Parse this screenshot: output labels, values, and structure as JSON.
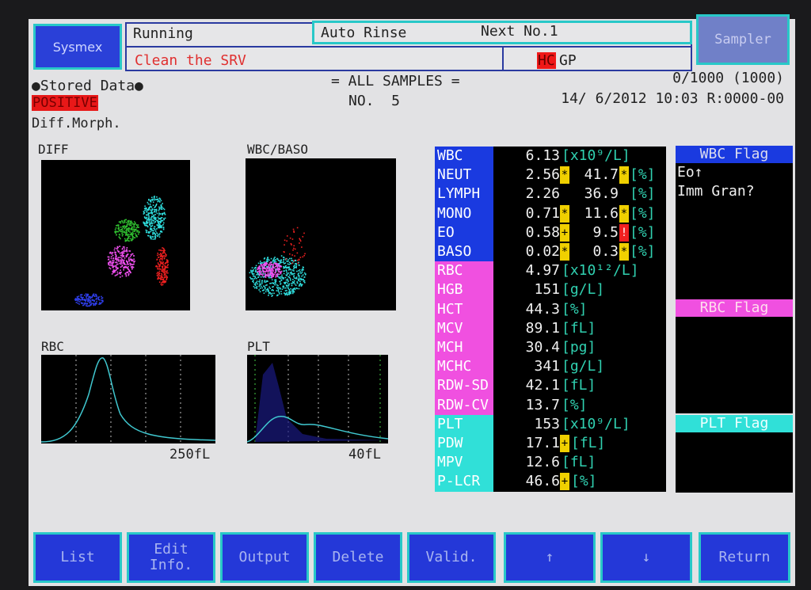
{
  "header": {
    "logo": "Sysmex",
    "status": "Running",
    "message": "Clean the SRV",
    "rinse": "Auto Rinse",
    "next": "Next No.1",
    "hc": "HC",
    "gp": "GP",
    "sampler": "Sampler"
  },
  "info": {
    "stored": "●Stored Data●",
    "positive": "POSITIVE",
    "morph": "Diff.Morph.",
    "samples": "= ALL SAMPLES =",
    "no": "NO.  5",
    "count": "0/1000 (1000)",
    "datetime": "14/ 6/2012 10:03 R:0000-00"
  },
  "plots": {
    "diff": "DIFF",
    "wbcbaso": "WBC/BASO",
    "rbc": "RBC",
    "plt": "PLT",
    "rbc_max": "250fL",
    "plt_max": "40fL"
  },
  "results": [
    {
      "label": "WBC",
      "group": "wbc",
      "value": "6.13",
      "unit": "[x10⁹/L]"
    },
    {
      "label": "NEUT",
      "group": "wbc",
      "value": "2.56",
      "mark": "*",
      "pct": "41.7",
      "pmark": "*",
      "unit2": "[%]"
    },
    {
      "label": "LYMPH",
      "group": "wbc",
      "value": "2.26",
      "pct": "36.9",
      "unit2": "[%]"
    },
    {
      "label": "MONO",
      "group": "wbc",
      "value": "0.71",
      "mark": "*",
      "pct": "11.6",
      "pmark": "*",
      "unit2": "[%]"
    },
    {
      "label": "EO",
      "group": "wbc",
      "value": "0.58",
      "mark": "+",
      "pct": "9.5",
      "pmark": "!",
      "unit2": "[%]"
    },
    {
      "label": "BASO",
      "group": "wbc",
      "value": "0.02",
      "mark": "*",
      "pct": "0.3",
      "pmark": "*",
      "unit2": "[%]"
    },
    {
      "label": "RBC",
      "group": "rbc",
      "value": "4.97",
      "unit": "[x10¹²/L]"
    },
    {
      "label": "HGB",
      "group": "rbc",
      "value": "151",
      "unit": "[g/L]"
    },
    {
      "label": "HCT",
      "group": "rbc",
      "value": "44.3",
      "unit": "[%]"
    },
    {
      "label": "MCV",
      "group": "rbc",
      "value": "89.1",
      "unit": "[fL]"
    },
    {
      "label": "MCH",
      "group": "rbc",
      "value": "30.4",
      "unit": "[pg]"
    },
    {
      "label": "MCHC",
      "group": "rbc",
      "value": "341",
      "unit": "[g/L]"
    },
    {
      "label": "RDW-SD",
      "group": "rbc",
      "value": "42.1",
      "unit": "[fL]"
    },
    {
      "label": "RDW-CV",
      "group": "rbc",
      "value": "13.7",
      "unit": "[%]"
    },
    {
      "label": "PLT",
      "group": "plt",
      "value": "153",
      "unit": "[x10⁹/L]"
    },
    {
      "label": "PDW",
      "group": "plt",
      "value": "17.1",
      "mark": "+",
      "unit": "[fL]"
    },
    {
      "label": "MPV",
      "group": "plt",
      "value": "12.6",
      "unit": "[fL]"
    },
    {
      "label": "P-LCR",
      "group": "plt",
      "value": "46.6",
      "mark": "+",
      "unit": "[%]"
    }
  ],
  "flags": {
    "wbc_title": "WBC Flag",
    "wbc_items": [
      "Eo↑",
      "Imm Gran?"
    ],
    "rbc_title": "RBC Flag",
    "plt_title": "PLT Flag"
  },
  "colors": {
    "wbc": "#1a3ae0",
    "rbc": "#f050e0",
    "plt": "#30e0d8"
  },
  "buttons": [
    "List",
    "Edit\nInfo.",
    "Output",
    "Delete",
    "Valid.",
    "↑",
    "↓",
    "Return"
  ]
}
